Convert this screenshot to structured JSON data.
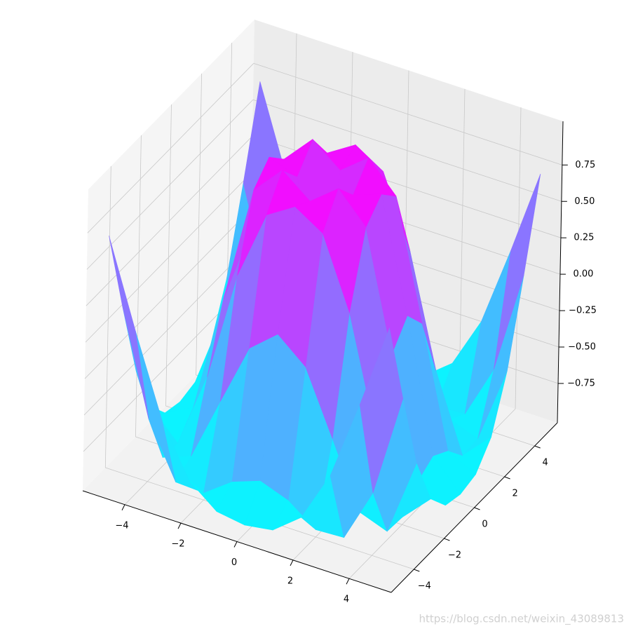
{
  "chart_data": {
    "type": "surface",
    "colormap": "cool",
    "grid": true,
    "x": [
      -5,
      -4,
      -3,
      -2,
      -1,
      0,
      1,
      2,
      3,
      4,
      5
    ],
    "y": [
      -5,
      -4,
      -3,
      -2,
      -1,
      0,
      1,
      2,
      3,
      4,
      5
    ],
    "z": [
      [
        0.71,
        0.12,
        -0.43,
        -0.78,
        -0.93,
        -0.96,
        -0.93,
        -0.78,
        -0.43,
        0.12,
        0.71
      ],
      [
        0.12,
        -0.59,
        -0.96,
        -0.97,
        -0.83,
        -0.76,
        -0.83,
        -0.97,
        -0.96,
        -0.59,
        0.12
      ],
      [
        -0.43,
        -0.96,
        -0.89,
        -0.45,
        -0.02,
        0.14,
        -0.02,
        -0.45,
        -0.89,
        -0.96,
        -0.43
      ],
      [
        -0.78,
        -0.97,
        -0.45,
        0.31,
        0.79,
        0.91,
        0.79,
        0.31,
        -0.45,
        -0.97,
        -0.78
      ],
      [
        -0.93,
        -0.83,
        -0.02,
        0.79,
        0.99,
        0.84,
        0.99,
        0.79,
        -0.02,
        -0.83,
        -0.93
      ],
      [
        -0.96,
        -0.76,
        0.14,
        0.91,
        0.84,
        0,
        0.84,
        0.91,
        0.14,
        -0.76,
        -0.96
      ],
      [
        -0.93,
        -0.83,
        -0.02,
        0.79,
        0.99,
        0.84,
        0.99,
        0.79,
        -0.02,
        -0.83,
        -0.93
      ],
      [
        -0.78,
        -0.97,
        -0.45,
        0.31,
        0.79,
        0.91,
        0.79,
        0.31,
        -0.45,
        -0.97,
        -0.78
      ],
      [
        -0.43,
        -0.96,
        -0.89,
        -0.45,
        -0.02,
        0.14,
        -0.02,
        -0.45,
        -0.89,
        -0.96,
        -0.43
      ],
      [
        0.12,
        -0.59,
        -0.96,
        -0.97,
        -0.83,
        -0.76,
        -0.83,
        -0.97,
        -0.96,
        -0.59,
        0.12
      ],
      [
        0.71,
        0.12,
        -0.43,
        -0.78,
        -0.93,
        -0.96,
        -0.93,
        -0.78,
        -0.43,
        0.12,
        0.71
      ]
    ],
    "xlim": [
      -5.5,
      5.5
    ],
    "ylim": [
      -5.5,
      5.5
    ],
    "zlim": [
      -1.02,
      1.05
    ],
    "xticks": [
      {
        "value": -4,
        "label": "−4"
      },
      {
        "value": -2,
        "label": "−2"
      },
      0,
      2,
      4
    ],
    "yticks": [
      {
        "value": -4,
        "label": "−4"
      },
      {
        "value": -2,
        "label": "−2"
      },
      0,
      2,
      4
    ],
    "zticks": [
      {
        "value": -0.75,
        "label": "−0.75"
      },
      {
        "value": -0.5,
        "label": "−0.50"
      },
      {
        "value": -0.25,
        "label": "−0.25"
      },
      {
        "value": 0,
        "label": "0.00"
      },
      0.25,
      {
        "value": 0.5,
        "label": "0.50"
      },
      0.75
    ]
  },
  "watermark": "https://blog.csdn.net/weixin_43089813"
}
